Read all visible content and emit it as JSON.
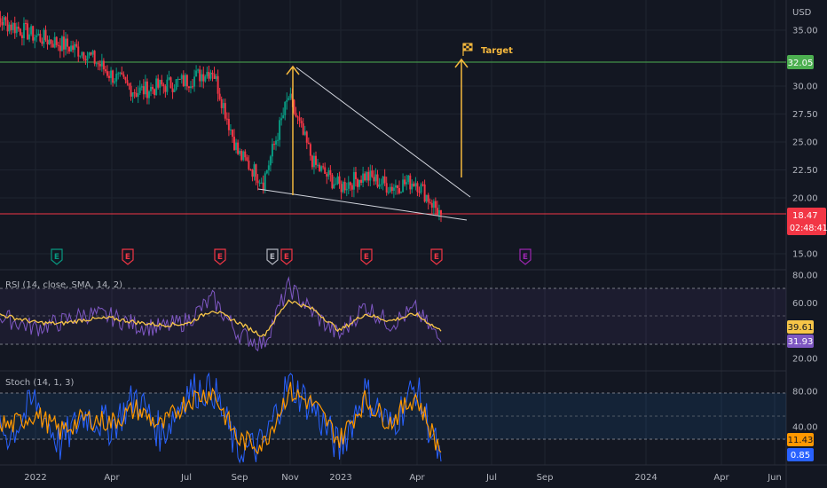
{
  "price_panel": {
    "currency": "USD",
    "y_ticks": [
      "35.00",
      "30.00",
      "27.50",
      "25.00",
      "22.50",
      "20.00",
      "15.00"
    ],
    "ylim": [
      15,
      36
    ],
    "target_label": "Target",
    "target_price": "32.05",
    "last_price": "18.47",
    "countdown": "02:48:41",
    "target_color": "#4caf50",
    "last_color": "#f23645",
    "earnings_marker": "E",
    "earnings_past_color": "#f23645",
    "earnings_future_color": "#9c27b0",
    "earnings_current_color": "#b2b5be",
    "wedge_color": "#d1d4dc",
    "arrow_color": "#f5b83d",
    "flag_icon": "checkered-flag-icon"
  },
  "rsi_panel": {
    "title": "RSI (14, close, SMA, 14, 2)",
    "y_ticks": [
      "80.00",
      "60.00",
      "20.00"
    ],
    "ylim": [
      20,
      80
    ],
    "sma_value": "39.61",
    "rsi_value": "31.93",
    "rsi_color": "#7e57c2",
    "sma_color": "#f7c548"
  },
  "stoch_panel": {
    "title": "Stoch (14, 1, 3)",
    "y_ticks": [
      "80.00",
      "40.00"
    ],
    "ylim": [
      0,
      100
    ],
    "d_value": "11.43",
    "k_value": "0.85",
    "k_color": "#2962ff",
    "d_color": "#ff9800"
  },
  "time_axis": {
    "labels": [
      "2022",
      "Apr",
      "Jul",
      "Sep",
      "Nov",
      "2023",
      "Apr",
      "Jul",
      "Sep",
      "2024",
      "Apr",
      "Jun"
    ]
  },
  "chart_data": [
    {
      "type": "candlestick",
      "x": [
        "2021-11",
        "2021-12",
        "2022-01",
        "2022-02",
        "2022-03",
        "2022-04",
        "2022-05",
        "2022-06",
        "2022-07",
        "2022-08",
        "2022-09",
        "2022-10",
        "2022-11",
        "2022-12",
        "2023-01",
        "2023-02",
        "2023-03",
        "2023-04",
        "2023-05"
      ],
      "close": [
        36.5,
        35.5,
        34.5,
        33.8,
        33,
        31,
        29.5,
        30,
        30.5,
        31.5,
        24,
        21.5,
        29,
        23,
        21,
        22,
        21,
        21.5,
        18.47
      ],
      "ylim": [
        15,
        36
      ],
      "annotations": [
        "Target",
        "32.05",
        "18.47"
      ]
    },
    {
      "type": "line",
      "series": [
        {
          "name": "RSI",
          "values": [
            55,
            48,
            42,
            46,
            52,
            50,
            44,
            42,
            47,
            63,
            38,
            30,
            72,
            52,
            36,
            58,
            45,
            55,
            31.93
          ]
        },
        {
          "name": "SMA",
          "values": [
            54,
            50,
            46,
            45,
            48,
            49,
            46,
            44,
            45,
            55,
            46,
            36,
            62,
            55,
            40,
            52,
            47,
            52,
            39.61
          ]
        }
      ],
      "ylim": [
        20,
        80
      ]
    },
    {
      "type": "line",
      "series": [
        {
          "name": "%K",
          "values": [
            60,
            30,
            70,
            20,
            55,
            40,
            75,
            30,
            80,
            85,
            10,
            20,
            90,
            60,
            15,
            80,
            40,
            85,
            0.85
          ]
        },
        {
          "name": "%D",
          "values": [
            55,
            40,
            55,
            35,
            50,
            45,
            60,
            40,
            70,
            80,
            25,
            20,
            80,
            65,
            25,
            70,
            45,
            75,
            11.43
          ]
        }
      ],
      "ylim": [
        0,
        100
      ]
    }
  ]
}
